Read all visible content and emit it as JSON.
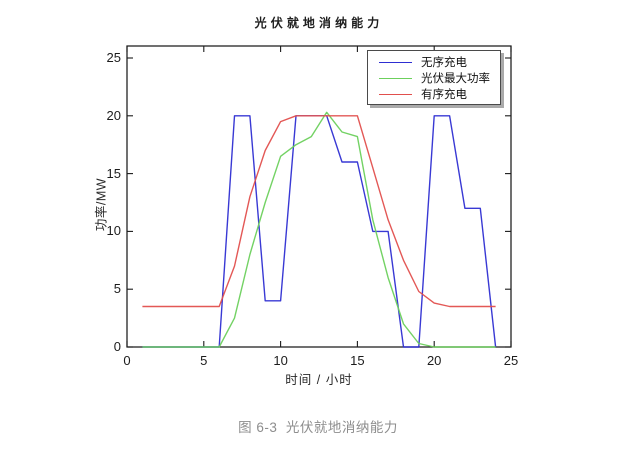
{
  "figure": {
    "caption": "图 6-3  光伏就地消纳能力"
  },
  "colors": {
    "axis": "#1a1a1a",
    "background": "#ffffff",
    "caption": "#8d8d8d"
  },
  "chart_data": {
    "type": "line",
    "title": "光伏就地消纳能力",
    "xlabel": "时间 / 小时",
    "ylabel": "功率/MW",
    "xlim": [
      0,
      25
    ],
    "ylim": [
      0,
      26
    ],
    "xticks": [
      0,
      5,
      10,
      15,
      20,
      25
    ],
    "yticks": [
      0,
      5,
      10,
      15,
      20,
      25
    ],
    "grid": false,
    "legend_position": "top-right",
    "x": [
      1,
      2,
      3,
      4,
      5,
      6,
      7,
      8,
      9,
      10,
      11,
      12,
      13,
      14,
      15,
      16,
      17,
      18,
      19,
      20,
      21,
      22,
      23,
      24
    ],
    "series": [
      {
        "name": "无序充电",
        "color": "#2e2ed2",
        "values": [
          0,
          0,
          0,
          0,
          0,
          0,
          20,
          20,
          4,
          4,
          20,
          20,
          20,
          16,
          16,
          10,
          10,
          0,
          0,
          20,
          20,
          12,
          12,
          0
        ]
      },
      {
        "name": "光伏最大功率",
        "color": "#6cd05c",
        "values": [
          0,
          0,
          0,
          0,
          0,
          0,
          2.5,
          8,
          12.5,
          16.5,
          17.5,
          18.2,
          20.3,
          18.6,
          18.2,
          11,
          6,
          2,
          0.3,
          0,
          0,
          0,
          0,
          0
        ]
      },
      {
        "name": "有序充电",
        "color": "#e14f4d",
        "values": [
          3.5,
          3.5,
          3.5,
          3.5,
          3.5,
          3.5,
          7,
          13,
          17,
          19.5,
          20,
          20,
          20,
          20,
          20,
          15.5,
          11,
          7.5,
          4.8,
          3.8,
          3.5,
          3.5,
          3.5,
          3.5
        ]
      }
    ]
  }
}
